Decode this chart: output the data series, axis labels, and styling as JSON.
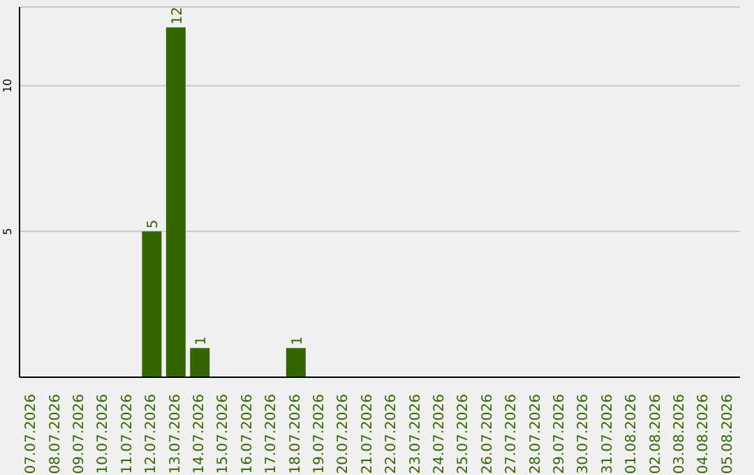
{
  "chart_data": {
    "type": "bar",
    "categories": [
      "07.07.2026",
      "08.07.2026",
      "09.07.2026",
      "10.07.2026",
      "11.07.2026",
      "12.07.2026",
      "13.07.2026",
      "14.07.2026",
      "15.07.2026",
      "16.07.2026",
      "17.07.2026",
      "18.07.2026",
      "19.07.2026",
      "20.07.2026",
      "21.07.2026",
      "22.07.2026",
      "23.07.2026",
      "24.07.2026",
      "25.07.2026",
      "26.07.2026",
      "27.07.2026",
      "28.07.2026",
      "29.07.2026",
      "30.07.2026",
      "31.07.2026",
      "01.08.2026",
      "02.08.2026",
      "03.08.2026",
      "04.08.2026",
      "05.08.2026"
    ],
    "values": [
      0,
      0,
      0,
      0,
      0,
      5,
      12,
      1,
      0,
      0,
      0,
      1,
      0,
      0,
      0,
      0,
      0,
      0,
      0,
      0,
      0,
      0,
      0,
      0,
      0,
      0,
      0,
      0,
      0,
      0
    ],
    "value_labels": [
      null,
      null,
      null,
      null,
      null,
      "5",
      "12",
      "1",
      null,
      null,
      null,
      "1",
      null,
      null,
      null,
      null,
      null,
      null,
      null,
      null,
      null,
      null,
      null,
      null,
      null,
      null,
      null,
      null,
      null,
      null
    ],
    "color": "#336600",
    "ylim": [
      0,
      12.7
    ],
    "yticks": [
      5,
      10
    ],
    "grid": "y"
  }
}
